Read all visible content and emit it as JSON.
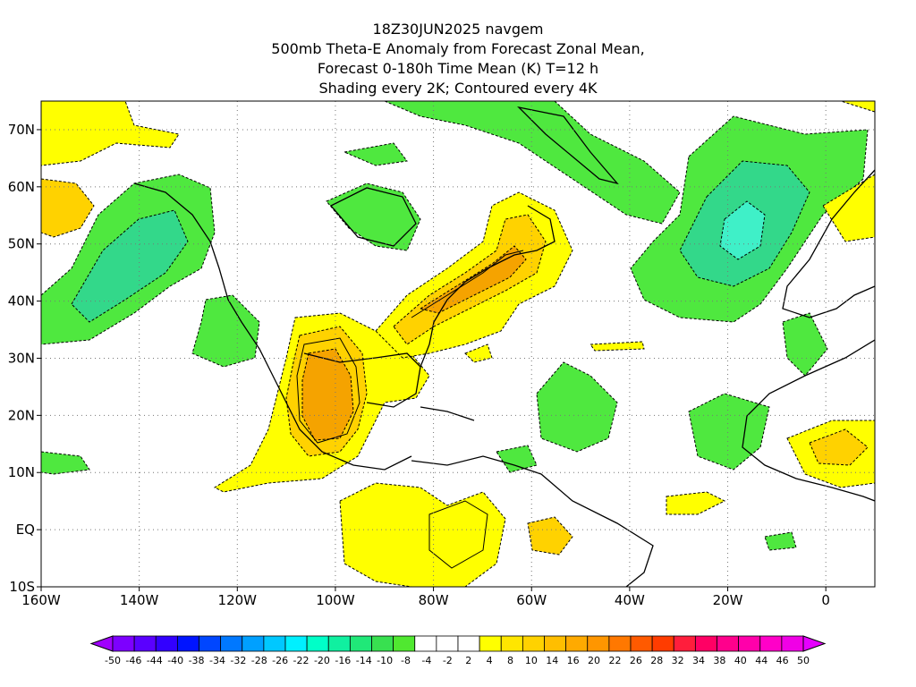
{
  "header": {
    "lines": [
      "18Z30JUN2025 navgem",
      "500mb Theta-E Anomaly from Forecast Zonal Mean,",
      "Forecast 0-180h Time Mean (K) T=12 h",
      "Shading every 2K; Contoured every 4K"
    ]
  },
  "map": {
    "lon_range": [
      -160,
      10
    ],
    "lat_range": [
      -10,
      75
    ],
    "lon_ticks": [
      {
        "value": -160,
        "label": "160W"
      },
      {
        "value": -140,
        "label": "140W"
      },
      {
        "value": -120,
        "label": "120W"
      },
      {
        "value": -100,
        "label": "100W"
      },
      {
        "value": -80,
        "label": "80W"
      },
      {
        "value": -60,
        "label": "60W"
      },
      {
        "value": -40,
        "label": "40W"
      },
      {
        "value": -20,
        "label": "20W"
      },
      {
        "value": 0,
        "label": "0"
      }
    ],
    "lat_ticks": [
      {
        "value": -10,
        "label": "10S"
      },
      {
        "value": 0,
        "label": "EQ"
      },
      {
        "value": 10,
        "label": "10N"
      },
      {
        "value": 20,
        "label": "20N"
      },
      {
        "value": 30,
        "label": "30N"
      },
      {
        "value": 40,
        "label": "40N"
      },
      {
        "value": 50,
        "label": "50N"
      },
      {
        "value": 60,
        "label": "60N"
      },
      {
        "value": 70,
        "label": "70N"
      }
    ],
    "grid": true,
    "colors": {
      "green": "#4fe83f",
      "teal": "#33d88a",
      "cyan": "#3ff0c8",
      "yellow": "#ffff00",
      "gold": "#ffd200",
      "orange": "#f5a300",
      "deep_orange": "#e88a00"
    }
  },
  "colorbar": {
    "labels": [
      "-50",
      "-46",
      "-44",
      "-40",
      "-38",
      "-34",
      "-32",
      "-28",
      "-26",
      "-22",
      "-20",
      "-16",
      "-14",
      "-10",
      "-8",
      "-4",
      "-2",
      "2",
      "4",
      "8",
      "10",
      "14",
      "16",
      "20",
      "22",
      "26",
      "28",
      "32",
      "34",
      "38",
      "40",
      "44",
      "46",
      "50"
    ],
    "colors": [
      "#a000ff",
      "#7d00ff",
      "#5a00ff",
      "#3200ff",
      "#0014ff",
      "#0046ff",
      "#0078ff",
      "#00a0ff",
      "#00c8ff",
      "#00f0ff",
      "#00ffc8",
      "#10f0a0",
      "#20e878",
      "#38e050",
      "#50e830",
      "#ffffff",
      "#ffffff",
      "#ffffff",
      "#ffff00",
      "#ffe600",
      "#ffd200",
      "#ffbe00",
      "#ffaa00",
      "#ff9600",
      "#ff7800",
      "#ff5a00",
      "#ff3c00",
      "#ff1e3c",
      "#ff0064",
      "#ff008c",
      "#ff00aa",
      "#ff00c8",
      "#f000e6",
      "#e600ff"
    ]
  }
}
